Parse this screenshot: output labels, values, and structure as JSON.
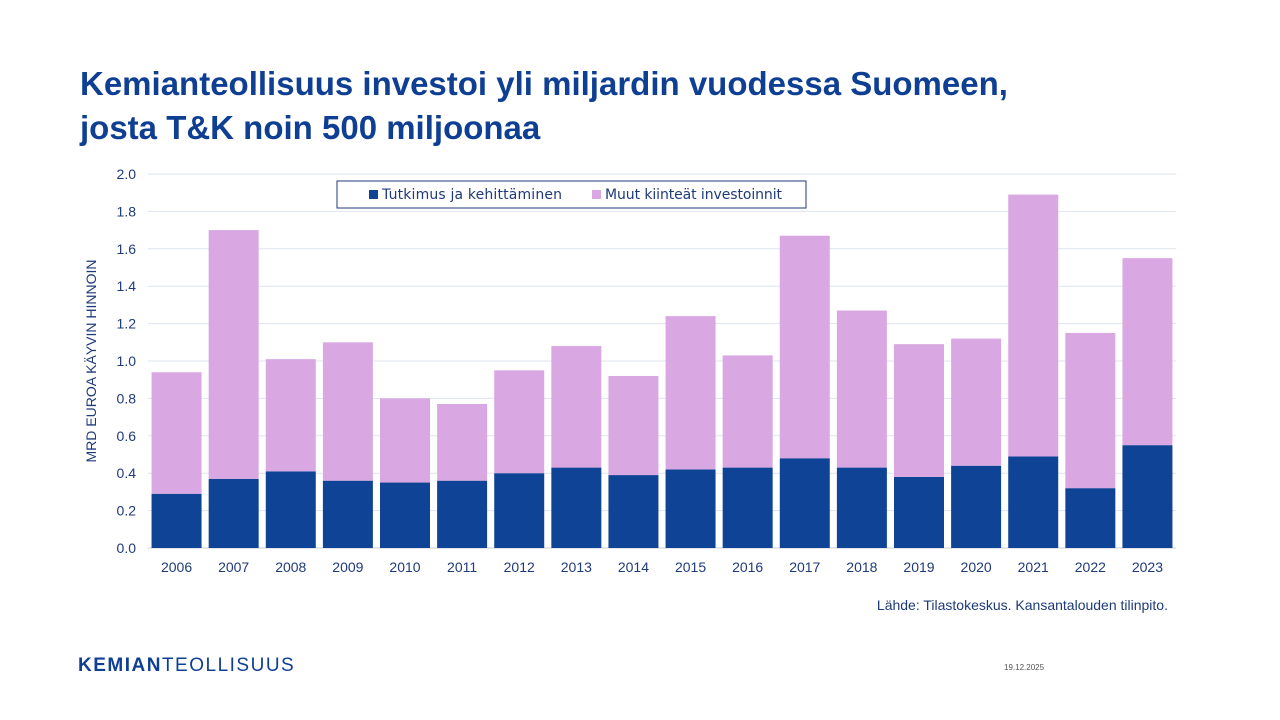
{
  "title_line1": "Kemianteollisuus investoi yli miljardin vuodessa Suomeen,",
  "title_line2": "josta T&K noin 500 miljoonaa",
  "source": "Lähde: Tilastokeskus. Kansantalouden tilinpito.",
  "logo": {
    "bold": "KEMIAN",
    "light": "TEOLLISUUS"
  },
  "date": "19.12.2025",
  "colors": {
    "rd": "#0f4396",
    "other": "#d9a8e2",
    "title": "#0f3f93"
  },
  "chart_data": {
    "type": "bar",
    "stacked": true,
    "ylabel": "MRD EUROA KÄYVIN HINNOIN",
    "ylim": [
      0,
      2.0
    ],
    "yticks": [
      "0.0",
      "0.2",
      "0.4",
      "0.6",
      "0.8",
      "1.0",
      "1.2",
      "1.4",
      "1.6",
      "1.8",
      "2.0"
    ],
    "grid": true,
    "legend_position": "top-center",
    "categories": [
      "2006",
      "2007",
      "2008",
      "2009",
      "2010",
      "2011",
      "2012",
      "2013",
      "2014",
      "2015",
      "2016",
      "2017",
      "2018",
      "2019",
      "2020",
      "2021",
      "2022",
      "2023"
    ],
    "series": [
      {
        "name": "Tutkimus ja kehittäminen",
        "values": [
          0.29,
          0.37,
          0.41,
          0.36,
          0.35,
          0.36,
          0.4,
          0.43,
          0.39,
          0.42,
          0.43,
          0.48,
          0.43,
          0.38,
          0.44,
          0.49,
          0.32,
          0.55
        ]
      },
      {
        "name": "Muut kiinteät investoinnit",
        "values": [
          0.65,
          1.33,
          0.6,
          0.74,
          0.45,
          0.41,
          0.55,
          0.65,
          0.53,
          0.82,
          0.6,
          1.19,
          0.84,
          0.71,
          0.68,
          1.4,
          0.83,
          1.0
        ]
      }
    ]
  }
}
